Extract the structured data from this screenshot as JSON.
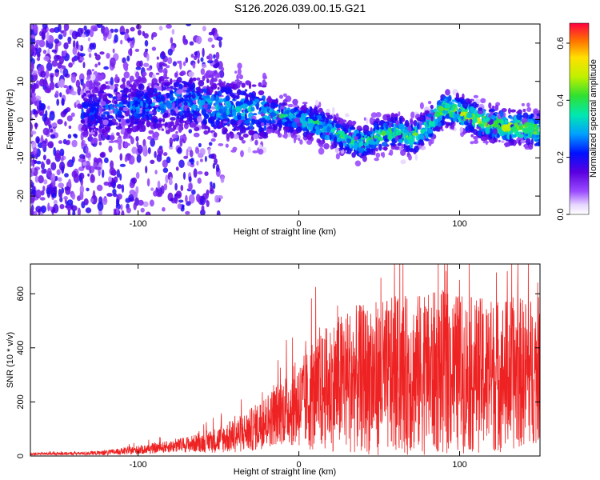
{
  "title": "S126.2026.039.00.15.G21",
  "chart_data": [
    {
      "type": "heatmap",
      "name": "spectrogram",
      "xlabel": "Height of straight line (km)",
      "ylabel": "Frequency (Hz)",
      "xlim": [
        -167,
        150
      ],
      "ylim": [
        -25,
        25
      ],
      "xticks": [
        -100,
        0,
        100
      ],
      "yticks": [
        -20,
        -10,
        0,
        10,
        20
      ],
      "colorbar": {
        "label": "Normalized spectral amplitude",
        "range": [
          0.0,
          0.67
        ],
        "ticks": [
          0.0,
          0.2,
          0.4,
          0.6
        ]
      },
      "ridge": {
        "x": [
          -130,
          -110,
          -90,
          -70,
          -50,
          -30,
          -10,
          0,
          10,
          20,
          30,
          40,
          50,
          60,
          70,
          80,
          90,
          100,
          110,
          120,
          130,
          140,
          150
        ],
        "f": [
          2,
          3,
          4,
          5,
          3,
          2,
          1,
          0,
          -1,
          -3,
          -5,
          -6,
          -4,
          -3,
          -5,
          -2,
          3,
          2,
          0,
          -1,
          -2,
          -2,
          -3
        ]
      }
    },
    {
      "type": "line",
      "name": "snr",
      "xlabel": "Height of straight line (km)",
      "ylabel": "SNR (10 * v/v)",
      "xlim": [
        -167,
        150
      ],
      "ylim": [
        0,
        710
      ],
      "xticks": [
        -100,
        0,
        100
      ],
      "yticks": [
        0,
        200,
        400,
        600
      ],
      "color": "#ee2222",
      "envelope": {
        "x": [
          -167,
          -140,
          -120,
          -100,
          -80,
          -60,
          -50,
          -40,
          -30,
          -20,
          -10,
          0,
          10,
          20,
          30,
          50,
          70,
          90,
          110,
          130,
          150
        ],
        "mean": [
          8,
          9,
          12,
          22,
          35,
          50,
          60,
          75,
          95,
          130,
          170,
          190,
          220,
          260,
          280,
          290,
          300,
          310,
          300,
          300,
          320
        ],
        "spread": [
          6,
          6,
          10,
          18,
          25,
          40,
          55,
          70,
          90,
          110,
          140,
          180,
          230,
          270,
          300,
          320,
          330,
          340,
          320,
          320,
          300
        ]
      }
    }
  ]
}
